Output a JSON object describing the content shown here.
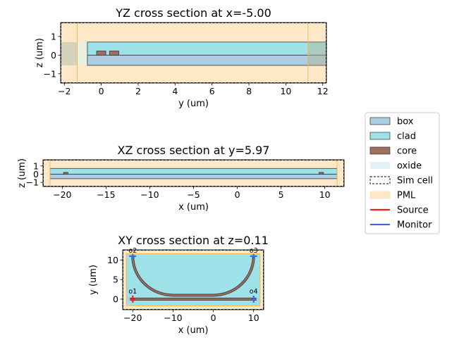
{
  "colors": {
    "box": "#abcee3",
    "clad": "#9fe1e8",
    "core": "#a0705f",
    "oxide": "#e4f2f6",
    "pml": "#ffe8c8",
    "pml_edge": "#f5b44a",
    "source": "#ff1a1a",
    "monitor": "#3f6ad8",
    "waveguide": "#444444"
  },
  "legend": {
    "entries": [
      {
        "label": "box",
        "style": "box"
      },
      {
        "label": "clad",
        "style": "clad"
      },
      {
        "label": "core",
        "style": "core"
      },
      {
        "label": "oxide",
        "style": "oxide"
      },
      {
        "label": "Sim cell",
        "style": "simcell"
      },
      {
        "label": "PML",
        "style": "pml"
      },
      {
        "label": "Source",
        "style": "source"
      },
      {
        "label": "Monitor",
        "style": "monitor"
      }
    ]
  },
  "chart_data": [
    {
      "type": "cross-section",
      "title": "YZ cross section at x=-5.00",
      "xlabel": "y (um)",
      "ylabel": "z (um)",
      "xlim": [
        -2.2,
        12.2
      ],
      "ylim": [
        -1.5,
        1.75
      ],
      "xticks": [
        -2,
        0,
        2,
        4,
        6,
        8,
        10,
        12
      ],
      "yticks": [
        -1,
        0,
        1
      ],
      "simcell": [
        -2.2,
        12.2,
        -1.5,
        1.75
      ],
      "pml_inner": [
        -1.3,
        11.2,
        -1.5,
        1.75
      ],
      "oxide": [
        -2.2,
        12.2,
        -0.55,
        0.7
      ],
      "box": [
        -0.75,
        12.2,
        -0.55,
        0.0
      ],
      "clad": [
        -0.75,
        12.2,
        0.0,
        0.7
      ],
      "cores": [
        [
          -0.25,
          0.25,
          0.0,
          0.22
        ],
        [
          0.45,
          0.95,
          0.0,
          0.22
        ]
      ],
      "shaded_ends": [
        [
          -2.2,
          -1.3
        ],
        [
          11.2,
          12.2
        ]
      ]
    },
    {
      "type": "cross-section",
      "title": "XZ cross section at y=5.97",
      "xlabel": "x (um)",
      "ylabel": "z (um)",
      "xlim": [
        -22.2,
        12.2
      ],
      "ylim": [
        -1.5,
        1.75
      ],
      "xticks": [
        -20,
        -15,
        -10,
        -5,
        0,
        5,
        10
      ],
      "yticks": [
        -1,
        0,
        1
      ],
      "simcell": [
        -22.2,
        12.2,
        -1.5,
        1.75
      ],
      "pml_inner": [
        -21.4,
        11.4,
        -1.5,
        1.75
      ],
      "box": [
        -21.4,
        11.4,
        -0.55,
        0.0
      ],
      "clad": [
        -21.4,
        11.4,
        0.0,
        0.7
      ],
      "cores": [
        [
          -19.85,
          -19.35,
          0.0,
          0.22
        ],
        [
          9.35,
          9.85,
          0.0,
          0.22
        ]
      ]
    },
    {
      "type": "layout",
      "title": "XY cross section at z=0.11",
      "xlabel": "x (um)",
      "ylabel": "y (um)",
      "xlim": [
        -22.5,
        12.5
      ],
      "ylim": [
        -2.7,
        12.6
      ],
      "xticks": [
        -20,
        -10,
        0,
        10
      ],
      "yticks": [
        0,
        5,
        10
      ],
      "simcell": [
        -22.5,
        12.5,
        -2.7,
        12.6
      ],
      "pml_inner": [
        -21.6,
        11.6,
        -1.7,
        11.6
      ],
      "clad_region": [
        -21.6,
        11.6,
        -1.7,
        11.6
      ],
      "waveguide_width": 0.5,
      "bend_radius": 10,
      "paths": {
        "straight": [
          [
            -20,
            0
          ],
          [
            10,
            0
          ]
        ],
        "u_bend": {
          "x_left": -20,
          "x_right": 10,
          "y_top": 11,
          "y_bottom": 1,
          "radius": 10
        }
      },
      "ports": [
        {
          "name": "o1",
          "x": -20,
          "y": 0,
          "kind": "source"
        },
        {
          "name": "o2",
          "x": -20,
          "y": 11,
          "kind": "monitor"
        },
        {
          "name": "o3",
          "x": 10,
          "y": 11,
          "kind": "monitor"
        },
        {
          "name": "o4",
          "x": 10,
          "y": 0,
          "kind": "monitor"
        }
      ]
    }
  ]
}
